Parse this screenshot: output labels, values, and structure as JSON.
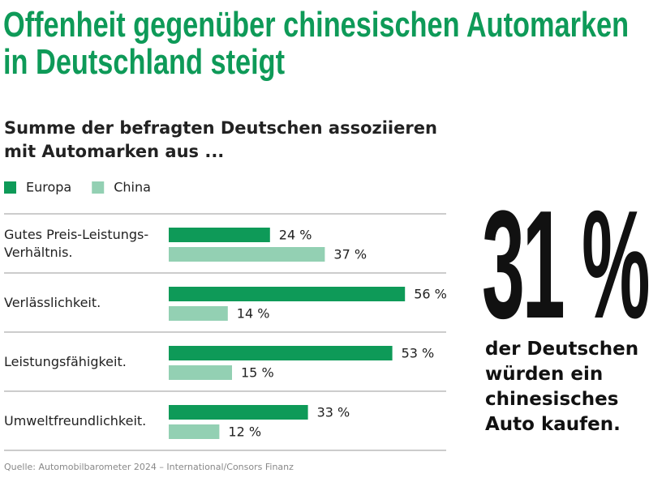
{
  "chart_data": {
    "type": "bar",
    "orientation": "horizontal",
    "title": "Offenheit gegenüber chinesischen Automarken\nin Deutschland steigt",
    "subtitle": "Summe der befragten Deutschen assoziieren\nmit Automarken aus ...",
    "categories": [
      "Gutes Preis-Leistungs-\nVerhältnis.",
      "Verlässlichkeit.",
      "Leistungsfähigkeit.",
      "Umweltfreundlichkeit."
    ],
    "series": [
      {
        "name": "Europa",
        "color": "#0e9a58",
        "values": [
          24,
          56,
          53,
          33
        ],
        "value_labels": [
          "24 %",
          "56 %",
          "53 %",
          "33 %"
        ]
      },
      {
        "name": "China",
        "color": "#93d0b3",
        "values": [
          37,
          14,
          15,
          12
        ],
        "value_labels": [
          "37 %",
          "14 %",
          "15 %",
          "12 %"
        ]
      }
    ],
    "highlight": {
      "value": 31,
      "label": "31 %",
      "text": "der Deutschen\nwürden ein\nchinesisches\nAuto kaufen."
    },
    "source": "Quelle: Automobilbarometer 2024 – International/Consors Finanz"
  }
}
